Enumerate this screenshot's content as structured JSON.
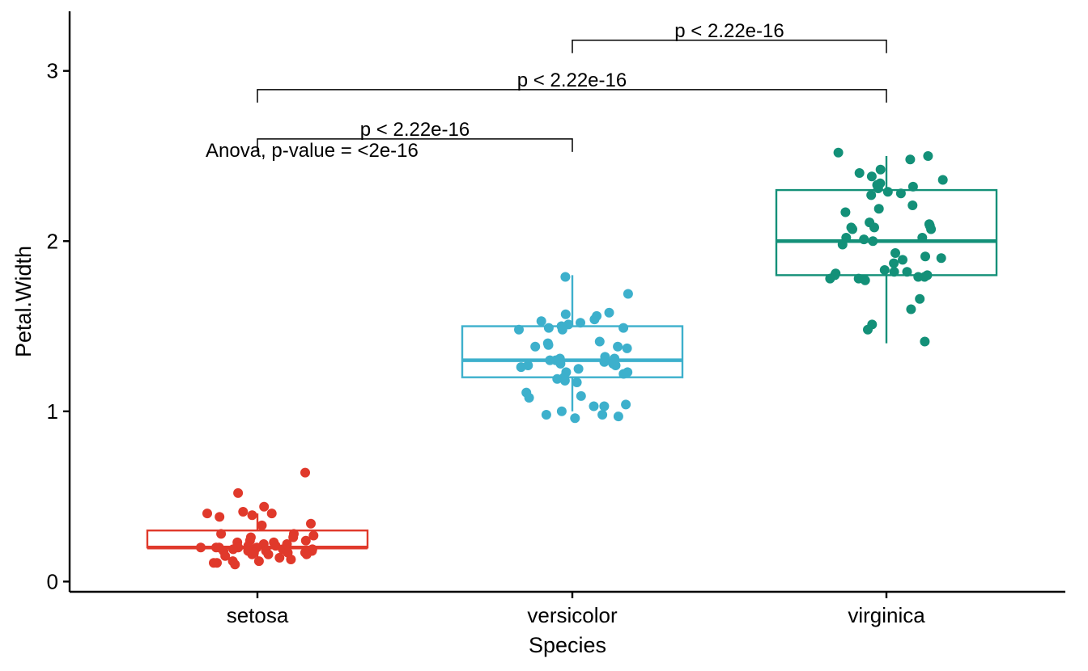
{
  "chart_data": {
    "type": "box",
    "xlabel": "Species",
    "ylabel": "Petal.Width",
    "ylim": [
      -0.06,
      3.35
    ],
    "yticks": [
      0,
      1,
      2,
      3
    ],
    "grid": false,
    "legend": "none",
    "categories": [
      "setosa",
      "versicolor",
      "virginica"
    ],
    "colors": [
      "#E0392B",
      "#3DB0CC",
      "#139078"
    ],
    "boxes": [
      {
        "category": "setosa",
        "min": 0.1,
        "q1": 0.2,
        "median": 0.2,
        "q3": 0.3,
        "max": 0.4
      },
      {
        "category": "versicolor",
        "min": 1.0,
        "q1": 1.2,
        "median": 1.3,
        "q3": 1.5,
        "max": 1.8
      },
      {
        "category": "virginica",
        "min": 1.4,
        "q1": 1.8,
        "median": 2.0,
        "q3": 2.3,
        "max": 2.5
      }
    ],
    "points": [
      [
        0.64,
        0.4,
        0.44,
        0.41,
        0.39,
        0.4,
        0.38,
        0.52,
        0.33,
        0.34,
        0.28,
        0.28,
        0.27,
        0.26,
        0.26,
        0.24,
        0.24,
        0.23,
        0.23,
        0.22,
        0.22,
        0.21,
        0.21,
        0.2,
        0.2,
        0.2,
        0.2,
        0.2,
        0.2,
        0.19,
        0.19,
        0.19,
        0.18,
        0.18,
        0.18,
        0.18,
        0.17,
        0.17,
        0.17,
        0.16,
        0.16,
        0.16,
        0.15,
        0.14,
        0.13,
        0.12,
        0.12,
        0.11,
        0.11,
        0.1
      ],
      [
        1.79,
        1.69,
        1.58,
        1.57,
        1.56,
        1.54,
        1.53,
        1.52,
        1.51,
        1.5,
        1.49,
        1.49,
        1.48,
        1.48,
        1.41,
        1.4,
        1.39,
        1.38,
        1.38,
        1.37,
        1.32,
        1.31,
        1.31,
        1.3,
        1.3,
        1.29,
        1.28,
        1.28,
        1.27,
        1.27,
        1.26,
        1.25,
        1.23,
        1.23,
        1.22,
        1.2,
        1.19,
        1.18,
        1.17,
        1.11,
        1.09,
        1.08,
        1.04,
        1.03,
        1.03,
        1.0,
        0.98,
        0.98,
        0.97,
        0.96
      ],
      [
        2.52,
        2.5,
        2.48,
        2.42,
        2.4,
        2.38,
        2.36,
        2.34,
        2.33,
        2.32,
        2.31,
        2.29,
        2.28,
        2.27,
        2.21,
        2.19,
        2.17,
        2.11,
        2.1,
        2.09,
        2.08,
        2.08,
        2.07,
        2.07,
        2.02,
        2.02,
        2.01,
        2.0,
        1.98,
        1.93,
        1.91,
        1.9,
        1.89,
        1.87,
        1.83,
        1.82,
        1.82,
        1.81,
        1.8,
        1.8,
        1.79,
        1.79,
        1.78,
        1.78,
        1.77,
        1.66,
        1.6,
        1.51,
        1.48,
        1.41
      ]
    ],
    "comparisons": [
      {
        "from": "versicolor",
        "to": "virginica",
        "label": "p < 2.22e-16",
        "y": 3.18
      },
      {
        "from": "setosa",
        "to": "virginica",
        "label": "p < 2.22e-16",
        "y": 2.89
      },
      {
        "from": "setosa",
        "to": "versicolor",
        "label": "p < 2.22e-16",
        "y": 2.6
      }
    ],
    "anova_label": "Anova, p-value = <2e-16"
  }
}
